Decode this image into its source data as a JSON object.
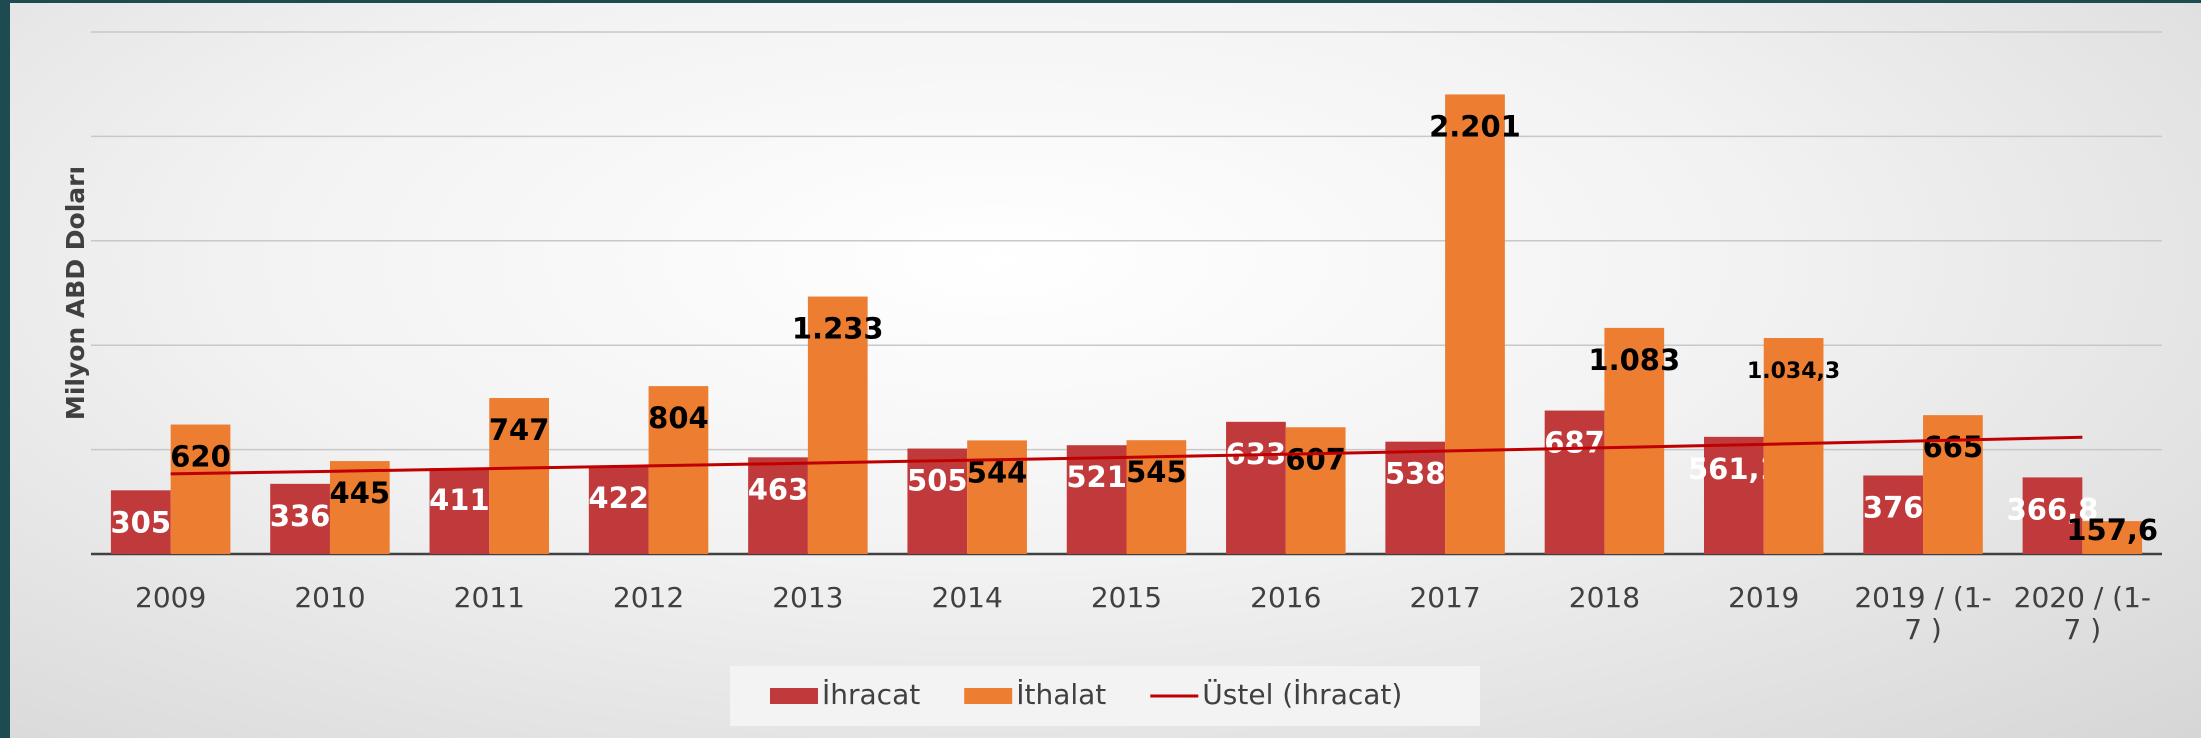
{
  "chart_data": {
    "type": "bar",
    "y_label": "Milyon ABD Doları",
    "categories": [
      "2009",
      "2010",
      "2011",
      "2012",
      "2013",
      "2014",
      "2015",
      "2016",
      "2017",
      "2018",
      "2019",
      "2019 / (1-7 )",
      "2020 / (1-7 )"
    ],
    "series": [
      {
        "name": "İhracat",
        "color": "#c0393b",
        "values": [
          305,
          336,
          411,
          422,
          463,
          505,
          521,
          633,
          538,
          687,
          561.1,
          376,
          366.8
        ],
        "value_labels": [
          "305",
          "336",
          "411",
          "422",
          "463",
          "505",
          "521",
          "633",
          "538",
          "687",
          "561,1",
          "376",
          "366,8"
        ]
      },
      {
        "name": "İthalat",
        "color": "#ed7d31",
        "values": [
          620,
          445,
          747,
          804,
          1233,
          544,
          545,
          607,
          2201,
          1083,
          1034.3,
          665,
          157.6
        ],
        "value_labels": [
          "620",
          "445",
          "747",
          "804",
          "1.233",
          "544",
          "545",
          "607",
          "2.201",
          "1.083",
          "1.034,3",
          "665",
          "157,6"
        ]
      },
      {
        "name": "Üstel (İhracat)",
        "type": "line",
        "color": "#c00000",
        "values": [
          384,
          396,
          409,
          422,
          435,
          449,
          463,
          478,
          493,
          509,
          525,
          542,
          559
        ]
      }
    ],
    "ylim": [
      0,
      2500
    ],
    "yticks": [
      0,
      500,
      1000,
      1500,
      2000,
      2500
    ],
    "grid": true,
    "legend": "bottom"
  }
}
